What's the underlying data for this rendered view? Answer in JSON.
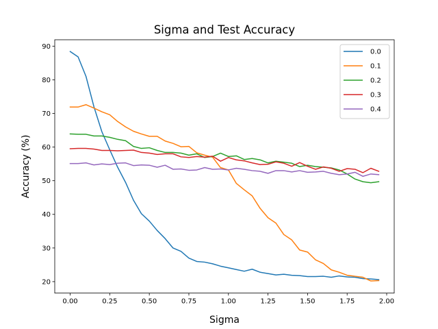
{
  "chart_data": {
    "type": "line",
    "title": "Sigma and Test Accuracy",
    "xlabel": "Sigma",
    "ylabel": "Accuracy (%)",
    "xlim": [
      -0.0975,
      2.0475
    ],
    "ylim": [
      16.6,
      91.9
    ],
    "grid": false,
    "legend_position": "top-right",
    "xticks": [
      0.0,
      0.25,
      0.5,
      0.75,
      1.0,
      1.25,
      1.5,
      1.75,
      2.0
    ],
    "xtick_labels": [
      "0.00",
      "0.25",
      "0.50",
      "0.75",
      "1.00",
      "1.25",
      "1.50",
      "1.75",
      "2.00"
    ],
    "yticks": [
      20,
      30,
      40,
      50,
      60,
      70,
      80,
      90
    ],
    "ytick_labels": [
      "20",
      "30",
      "40",
      "50",
      "60",
      "70",
      "80",
      "90"
    ],
    "x": [
      0.0,
      0.05,
      0.1,
      0.15,
      0.2,
      0.25,
      0.3,
      0.35,
      0.4,
      0.45,
      0.5,
      0.55,
      0.6,
      0.65,
      0.7,
      0.75,
      0.8,
      0.85,
      0.9,
      0.95,
      1.0,
      1.05,
      1.1,
      1.15,
      1.2,
      1.25,
      1.3,
      1.35,
      1.4,
      1.45,
      1.5,
      1.55,
      1.6,
      1.65,
      1.7,
      1.75,
      1.8,
      1.85,
      1.9,
      1.95
    ],
    "series": [
      {
        "name": "0.0",
        "color": "#1f77b4",
        "values": [
          88.4,
          86.8,
          81.0,
          72.0,
          64.6,
          59.2,
          54.0,
          49.5,
          44.2,
          40.2,
          38.0,
          35.2,
          32.8,
          30.0,
          29.0,
          27.0,
          26.0,
          25.8,
          25.3,
          24.6,
          24.1,
          23.6,
          23.1,
          23.7,
          22.8,
          22.4,
          22.0,
          22.2,
          21.9,
          21.8,
          21.5,
          21.5,
          21.6,
          21.3,
          21.7,
          21.4,
          21.3,
          20.9,
          20.8,
          20.6
        ]
      },
      {
        "name": "0.1",
        "color": "#ff7f0e",
        "values": [
          71.9,
          71.9,
          72.6,
          71.6,
          70.5,
          69.6,
          67.6,
          66.0,
          64.7,
          63.9,
          63.2,
          63.2,
          61.8,
          61.1,
          60.1,
          60.2,
          58.3,
          57.6,
          57.0,
          53.9,
          53.2,
          49.2,
          47.3,
          45.5,
          41.8,
          39.0,
          37.4,
          34.0,
          32.4,
          29.4,
          28.8,
          26.5,
          25.4,
          23.5,
          22.8,
          21.9,
          21.6,
          21.3,
          20.2,
          20.3
        ]
      },
      {
        "name": "0.2",
        "color": "#2ca02c",
        "values": [
          63.9,
          63.8,
          63.8,
          63.3,
          63.3,
          62.9,
          62.3,
          61.9,
          60.2,
          59.6,
          59.8,
          59.0,
          58.4,
          58.4,
          58.2,
          57.6,
          58.0,
          56.9,
          57.2,
          58.2,
          57.2,
          57.4,
          56.3,
          56.6,
          56.2,
          55.3,
          55.8,
          55.5,
          55.2,
          54.2,
          54.6,
          54.2,
          54.0,
          53.8,
          53.2,
          52.0,
          50.5,
          49.7,
          49.4,
          49.7
        ]
      },
      {
        "name": "0.3",
        "color": "#d62728",
        "values": [
          59.5,
          59.6,
          59.6,
          59.4,
          59.0,
          59.0,
          58.9,
          59.0,
          59.1,
          58.4,
          58.2,
          57.8,
          58.0,
          58.0,
          57.1,
          56.9,
          57.2,
          57.0,
          57.3,
          55.8,
          56.9,
          56.2,
          55.9,
          55.3,
          54.8,
          54.9,
          55.6,
          55.2,
          54.3,
          55.4,
          54.3,
          53.4,
          54.1,
          53.7,
          52.8,
          53.6,
          53.4,
          52.4,
          53.7,
          52.8
        ]
      },
      {
        "name": "0.4",
        "color": "#9467bd",
        "values": [
          55.1,
          55.1,
          55.3,
          54.7,
          55.0,
          54.8,
          55.2,
          55.3,
          54.5,
          54.7,
          54.6,
          54.0,
          54.6,
          53.4,
          53.5,
          53.1,
          53.2,
          53.9,
          53.4,
          53.5,
          53.2,
          53.7,
          53.4,
          53.0,
          52.8,
          52.2,
          53.0,
          53.0,
          52.6,
          53.0,
          52.5,
          52.6,
          52.8,
          52.2,
          51.8,
          52.0,
          52.5,
          51.3,
          52.0,
          51.8
        ]
      }
    ]
  }
}
